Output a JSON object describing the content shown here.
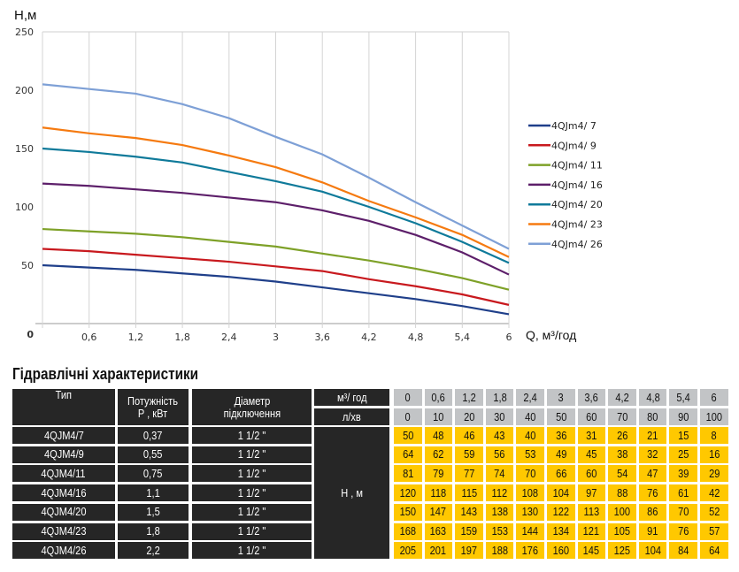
{
  "chart_data": {
    "type": "line",
    "ylabel": "H,м",
    "xlabel": "Q, м³/год",
    "x": [
      0,
      0.6,
      1.2,
      1.8,
      2.4,
      3,
      3.6,
      4.2,
      4.8,
      5.4,
      6
    ],
    "xticks": [
      "0",
      "0,6",
      "1,2",
      "1,8",
      "2,4",
      "3",
      "3,6",
      "4,2",
      "4,8",
      "5,4",
      "6"
    ],
    "yticks": [
      "0",
      "50",
      "100",
      "150",
      "200",
      "250"
    ],
    "xlim": [
      0,
      6
    ],
    "ylim": [
      0,
      250
    ],
    "grid": "vertical",
    "legend": "right",
    "series": [
      {
        "name": "4QJm4/ 7",
        "color": "#1f3f8a",
        "values": [
          50,
          48,
          46,
          43,
          40,
          36,
          31,
          26,
          21,
          15,
          8
        ]
      },
      {
        "name": "4QJm4/ 9",
        "color": "#c8191e",
        "values": [
          64,
          62,
          59,
          56,
          53,
          49,
          45,
          38,
          32,
          25,
          16
        ]
      },
      {
        "name": "4QJm4/ 11",
        "color": "#7ea128",
        "values": [
          81,
          79,
          77,
          74,
          70,
          66,
          60,
          54,
          47,
          39,
          29
        ]
      },
      {
        "name": "4QJm4/ 16",
        "color": "#5d1f6a",
        "values": [
          120,
          118,
          115,
          112,
          108,
          104,
          97,
          88,
          76,
          61,
          42
        ]
      },
      {
        "name": "4QJm4/ 20",
        "color": "#0f7a9a",
        "values": [
          150,
          147,
          143,
          138,
          130,
          122,
          113,
          100,
          86,
          70,
          52
        ]
      },
      {
        "name": "4QJm4/ 23",
        "color": "#f57a10",
        "values": [
          168,
          163,
          159,
          153,
          144,
          134,
          121,
          105,
          91,
          76,
          57
        ]
      },
      {
        "name": "4QJm4/ 26",
        "color": "#7ea0d6",
        "values": [
          205,
          201,
          197,
          188,
          176,
          160,
          145,
          125,
          104,
          84,
          64
        ]
      }
    ]
  },
  "table": {
    "title": "Гідравлічні характеристики",
    "headers": {
      "type": "Тип",
      "power": "Потужність\nP , кВт",
      "diameter": "Діаметр\nпідключення",
      "flow_m3": "м³/ год",
      "flow_l": "л/хв",
      "head": "H , м"
    },
    "flow_m3": [
      "0",
      "0,6",
      "1,2",
      "1,8",
      "2,4",
      "3",
      "3,6",
      "4,2",
      "4,8",
      "5,4",
      "6"
    ],
    "flow_l": [
      "0",
      "10",
      "20",
      "30",
      "40",
      "50",
      "60",
      "70",
      "80",
      "90",
      "100"
    ],
    "rows": [
      {
        "type": "4QJM4/7",
        "power": "0,37",
        "diameter": "1 1/2 \"",
        "head": [
          "50",
          "48",
          "46",
          "43",
          "40",
          "36",
          "31",
          "26",
          "21",
          "15",
          "8"
        ]
      },
      {
        "type": "4QJM4/9",
        "power": "0,55",
        "diameter": "1 1/2 \"",
        "head": [
          "64",
          "62",
          "59",
          "56",
          "53",
          "49",
          "45",
          "38",
          "32",
          "25",
          "16"
        ]
      },
      {
        "type": "4QJM4/11",
        "power": "0,75",
        "diameter": "1 1/2 \"",
        "head": [
          "81",
          "79",
          "77",
          "74",
          "70",
          "66",
          "60",
          "54",
          "47",
          "39",
          "29"
        ]
      },
      {
        "type": "4QJM4/16",
        "power": "1,1",
        "diameter": "1 1/2 \"",
        "head": [
          "120",
          "118",
          "115",
          "112",
          "108",
          "104",
          "97",
          "88",
          "76",
          "61",
          "42"
        ]
      },
      {
        "type": "4QJM4/20",
        "power": "1,5",
        "diameter": "1 1/2 \"",
        "head": [
          "150",
          "147",
          "143",
          "138",
          "130",
          "122",
          "113",
          "100",
          "86",
          "70",
          "52"
        ]
      },
      {
        "type": "4QJM4/23",
        "power": "1,8",
        "diameter": "1 1/2 \"",
        "head": [
          "168",
          "163",
          "159",
          "153",
          "144",
          "134",
          "121",
          "105",
          "91",
          "76",
          "57"
        ]
      },
      {
        "type": "4QJM4/26",
        "power": "2,2",
        "diameter": "1 1/2 \"",
        "head": [
          "205",
          "201",
          "197",
          "188",
          "176",
          "160",
          "145",
          "125",
          "104",
          "84",
          "64"
        ]
      }
    ]
  }
}
